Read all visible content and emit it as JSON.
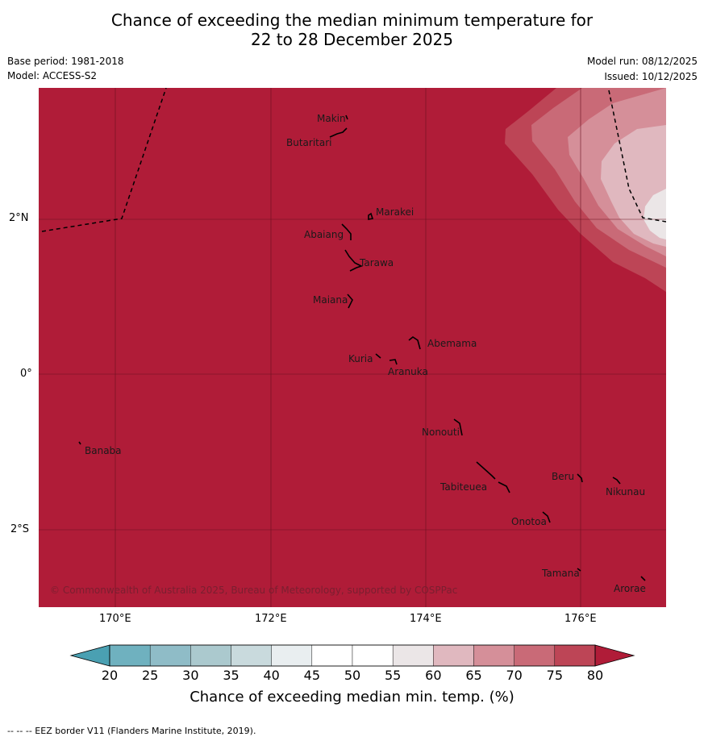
{
  "title": {
    "line1": "Chance of exceeding the median minimum temperature for",
    "line2": "22 to 28 December 2025"
  },
  "meta": {
    "base_period": "Base period: 1981-2018",
    "model": "Model: ACCESS-S2",
    "model_run": "Model run: 08/12/2025",
    "issued": "Issued: 10/12/2025"
  },
  "map": {
    "background_color": "#b01c38",
    "copyright": "© Commonwealth of Australia 2025, Bureau of Meteorology, supported by COSPPac",
    "lon_ticks": [
      "170°E",
      "172°E",
      "174°E",
      "176°E"
    ],
    "lat_ticks": [
      "2°N",
      "0°",
      "2°S"
    ],
    "places": [
      "Makin",
      "Butaritari",
      "Marakei",
      "Abaiang",
      "Tarawa",
      "Maiana",
      "Abemama",
      "Kuria",
      "Aranuka",
      "Nonouti",
      "Banaba",
      "Tabiteuea",
      "Beru",
      "Nikunau",
      "Onotoa",
      "Tamana",
      "Arorae"
    ]
  },
  "colorbar": {
    "ticks": [
      "20",
      "25",
      "30",
      "35",
      "40",
      "45",
      "50",
      "55",
      "60",
      "65",
      "70",
      "75",
      "80"
    ],
    "colors": [
      "#4aa0b2",
      "#6fb1bf",
      "#8fbcc7",
      "#abc9ce",
      "#c9dadd",
      "#e9eef0",
      "#ffffff",
      "#ffffff",
      "#ebe6e7",
      "#e0b8bf",
      "#d58f99",
      "#c96a77",
      "#bd4556",
      "#b01c38"
    ],
    "label": "Chance of exceeding median min. temp. (%)"
  },
  "footer": "--  --  -- EEZ border V11 (Flanders Marine Institute, 2019)."
}
